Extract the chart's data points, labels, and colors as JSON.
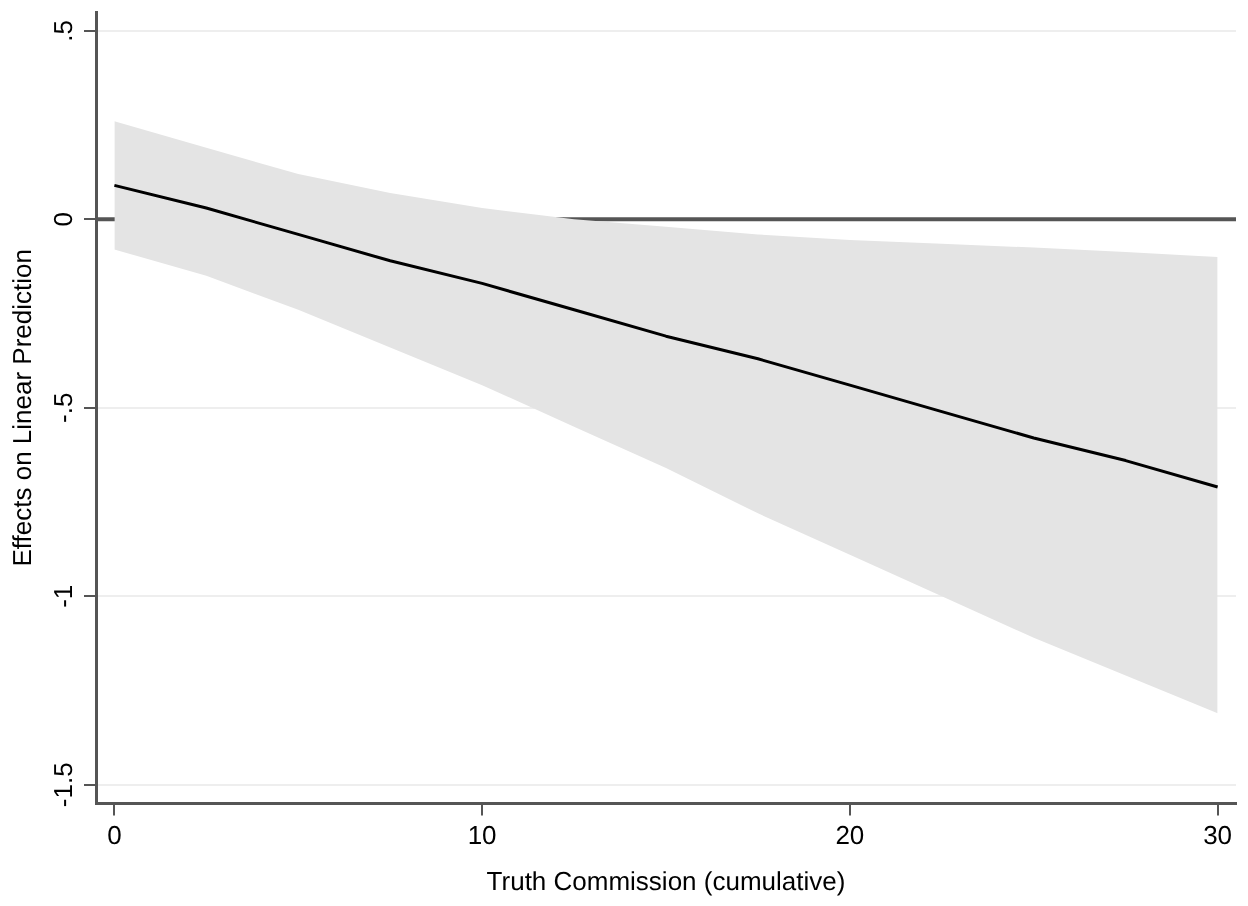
{
  "chart_data": {
    "type": "line",
    "xlabel": "Truth Commission (cumulative)",
    "ylabel": "Effects on Linear Prediction",
    "x": [
      0,
      2.5,
      5,
      7.5,
      10,
      12.5,
      15,
      17.5,
      20,
      22.5,
      25,
      27.5,
      30
    ],
    "series": [
      {
        "color": "#000000",
        "values": [
          0.09,
          0.03,
          -0.04,
          -0.11,
          -0.17,
          -0.24,
          -0.31,
          -0.37,
          -0.44,
          -0.51,
          -0.58,
          -0.64,
          -0.71
        ],
        "lower": [
          -0.08,
          -0.15,
          -0.24,
          -0.34,
          -0.44,
          -0.55,
          -0.66,
          -0.78,
          -0.89,
          -1.0,
          -1.11,
          -1.21,
          -1.31
        ],
        "upper": [
          0.26,
          0.19,
          0.12,
          0.07,
          0.03,
          0.0,
          -0.02,
          -0.04,
          -0.055,
          -0.065,
          -0.075,
          -0.087,
          -0.1
        ]
      }
    ],
    "xlim": [
      -0.5,
      30.5
    ],
    "xticks": [
      0,
      10,
      20,
      30
    ],
    "ylim": [
      -1.55,
      0.55
    ],
    "yticks": [
      {
        "value": 0.5,
        "label": ".5"
      },
      0,
      {
        "value": -0.5,
        "label": "-.5"
      },
      -1,
      -1.5
    ],
    "ref_lines": [
      {
        "axis": "y",
        "value": 0,
        "color": "#555555"
      }
    ],
    "grid": "y",
    "legend": false,
    "marker": "none",
    "line_style": "solid"
  }
}
